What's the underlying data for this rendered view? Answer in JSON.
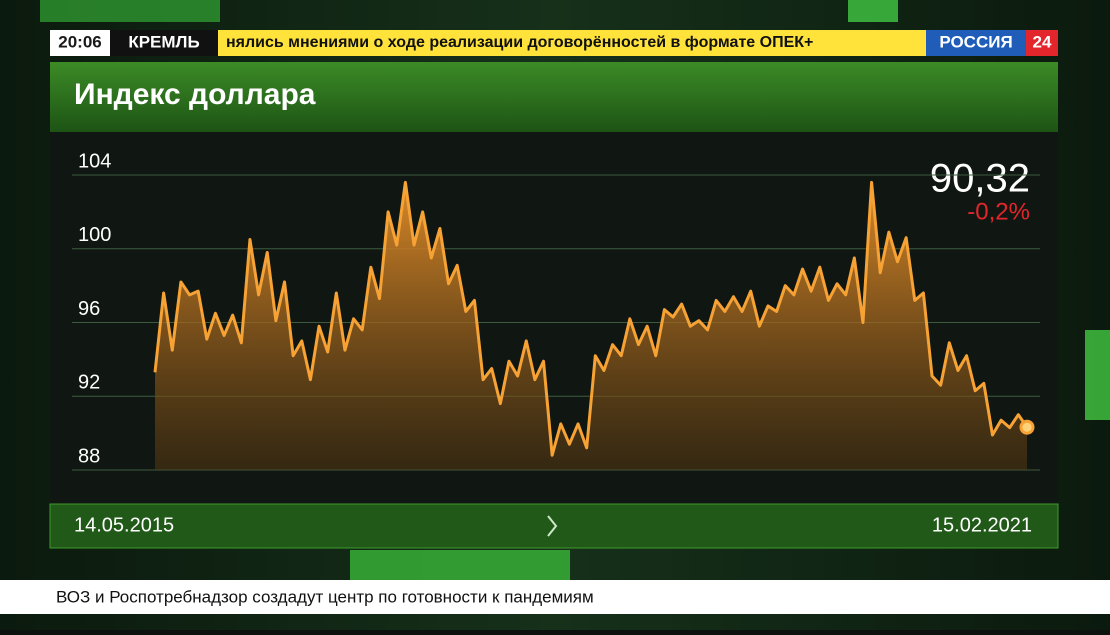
{
  "broadcast": {
    "clock": "20:06",
    "ticker_tag": "КРЕМЛЬ",
    "ticker_text": "нялись мнениями о ходе реализации договорённостей в формате ОПЕК+",
    "logo": "РОССИЯ",
    "logo_number": "24",
    "bottom_ticker": "ВОЗ и Роспотребнадзор создадут центр по готовности к пандемиям"
  },
  "chart_data": {
    "type": "area",
    "title": "Индекс доллара",
    "color": "#f7a234",
    "change": "-0,2%",
    "change_color": "#e3262c",
    "ylim": [
      88,
      105.9
    ],
    "yticks": [
      88,
      92,
      96,
      100,
      104
    ],
    "grid": true,
    "categories": [
      "14.05.2015",
      null,
      null,
      null,
      null,
      null,
      null,
      null,
      null,
      null,
      null,
      null,
      null,
      null,
      null,
      null,
      null,
      null,
      null,
      null,
      null,
      null,
      null,
      null,
      null,
      null,
      null,
      null,
      null,
      null,
      null,
      null,
      null,
      null,
      null,
      null,
      null,
      null,
      null,
      null,
      null,
      null,
      null,
      null,
      null,
      null,
      null,
      null,
      null,
      null,
      null,
      null,
      null,
      null,
      null,
      null,
      null,
      null,
      null,
      null,
      null,
      null,
      null,
      null,
      null,
      null,
      null,
      null,
      null,
      null,
      null,
      null,
      null,
      null,
      null,
      null,
      null,
      null,
      null,
      null,
      null,
      null,
      null,
      null,
      null,
      null,
      null,
      null,
      null,
      null,
      null,
      null,
      null,
      null,
      null,
      null,
      null,
      null,
      null,
      null,
      null,
      "15.02.2021"
    ],
    "values": [
      93.3,
      97.6,
      94.5,
      98.2,
      97.5,
      97.7,
      95.1,
      96.5,
      95.3,
      96.4,
      94.9,
      100.5,
      97.5,
      99.8,
      96.1,
      98.2,
      94.2,
      95.0,
      92.9,
      95.8,
      94.4,
      97.6,
      94.5,
      96.2,
      95.6,
      99.0,
      97.3,
      102.0,
      100.2,
      103.6,
      100.2,
      102.0,
      99.5,
      101.1,
      98.1,
      99.1,
      96.6,
      97.2,
      92.9,
      93.5,
      91.6,
      93.9,
      93.1,
      95.0,
      92.9,
      93.9,
      88.8,
      90.5,
      89.4,
      90.5,
      89.2,
      94.2,
      93.4,
      94.8,
      94.2,
      96.2,
      94.8,
      95.8,
      94.2,
      96.7,
      96.3,
      97.0,
      95.8,
      96.1,
      95.6,
      97.2,
      96.6,
      97.4,
      96.6,
      97.7,
      95.8,
      96.9,
      96.6,
      98.0,
      97.5,
      98.9,
      97.7,
      99.0,
      97.2,
      98.1,
      97.5,
      99.5,
      96.0,
      103.6,
      98.7,
      100.9,
      99.3,
      100.6,
      97.2,
      97.6,
      93.1,
      92.6,
      94.9,
      93.4,
      94.2,
      92.3,
      92.7,
      89.9,
      90.7,
      90.3,
      91.0,
      90.32
    ],
    "value_labels": [
      null,
      null,
      null,
      null,
      null,
      null,
      null,
      null,
      null,
      null,
      null,
      null,
      null,
      null,
      null,
      null,
      null,
      null,
      null,
      null,
      null,
      null,
      null,
      null,
      null,
      null,
      null,
      null,
      null,
      null,
      null,
      null,
      null,
      null,
      null,
      null,
      null,
      null,
      null,
      null,
      null,
      null,
      null,
      null,
      null,
      null,
      null,
      null,
      null,
      null,
      null,
      null,
      null,
      null,
      null,
      null,
      null,
      null,
      null,
      null,
      null,
      null,
      null,
      null,
      null,
      null,
      null,
      null,
      null,
      null,
      null,
      null,
      null,
      null,
      null,
      null,
      null,
      null,
      null,
      null,
      null,
      null,
      null,
      null,
      null,
      null,
      null,
      null,
      null,
      null,
      null,
      null,
      null,
      null,
      null,
      null,
      null,
      null,
      null,
      null,
      null,
      "90,32"
    ]
  }
}
